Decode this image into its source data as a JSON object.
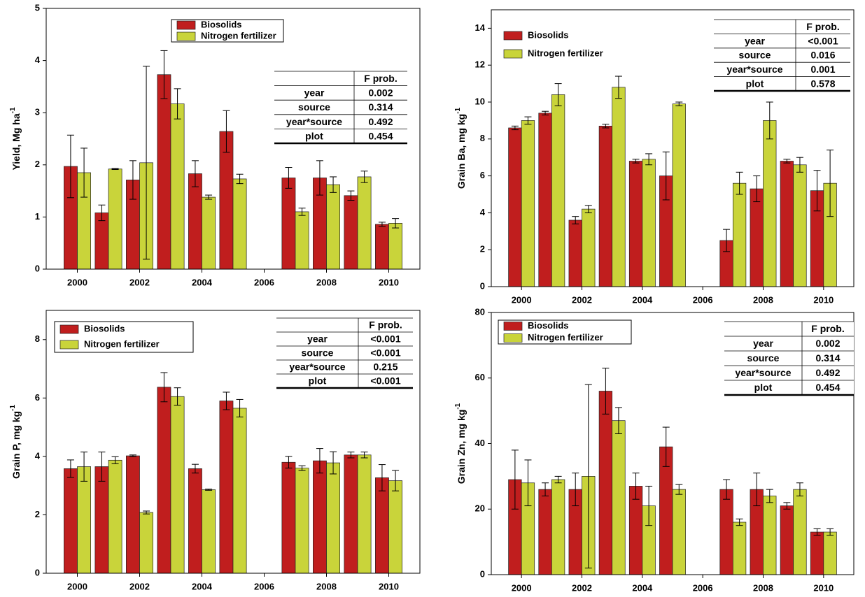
{
  "chart_data": [
    {
      "type": "bar",
      "ylabel": "Yield, Mg ha",
      "ylabel_sup": "-1",
      "categories": [
        "2000",
        null,
        "2002",
        null,
        "2004",
        null,
        "2006",
        null,
        "2008",
        null,
        "2010"
      ],
      "ylim": [
        0,
        5
      ],
      "yticks": [
        0,
        1,
        2,
        3,
        4,
        5
      ],
      "series": [
        {
          "name": "Biosolids",
          "color": "#c01e1e",
          "values": [
            1.97,
            1.08,
            1.71,
            3.73,
            1.83,
            2.64,
            null,
            1.75,
            1.75,
            1.41,
            0.86
          ],
          "errors": [
            0.6,
            0.15,
            0.37,
            0.46,
            0.25,
            0.4,
            null,
            0.2,
            0.33,
            0.09,
            0.04
          ]
        },
        {
          "name": "Nitrogen fertilizer",
          "color": "#c9d43a",
          "values": [
            1.85,
            1.92,
            2.04,
            3.17,
            1.38,
            1.73,
            null,
            1.1,
            1.62,
            1.77,
            0.88
          ],
          "errors": [
            0.47,
            0.01,
            1.85,
            0.29,
            0.04,
            0.09,
            null,
            0.07,
            0.15,
            0.11,
            0.09
          ]
        }
      ],
      "table": {
        "header": "F prob.",
        "rows": [
          [
            "year",
            "0.002"
          ],
          [
            "source",
            "0.314"
          ],
          [
            "year*source",
            "0.492"
          ],
          [
            "plot",
            "0.454"
          ]
        ]
      }
    },
    {
      "type": "bar",
      "ylabel": "Grain Ba, mg kg",
      "ylabel_sup": "-1",
      "categories": [
        "2000",
        null,
        "2002",
        null,
        "2004",
        null,
        "2006",
        null,
        "2008",
        null,
        "2010"
      ],
      "ylim": [
        0,
        15
      ],
      "yticks": [
        0,
        2,
        4,
        6,
        8,
        10,
        12,
        14
      ],
      "series": [
        {
          "name": "Biosolids",
          "color": "#c01e1e",
          "values": [
            8.6,
            9.4,
            3.6,
            8.7,
            6.8,
            6.0,
            null,
            2.5,
            5.3,
            6.8,
            5.2
          ],
          "errors": [
            0.1,
            0.1,
            0.2,
            0.1,
            0.1,
            1.3,
            null,
            0.6,
            0.7,
            0.1,
            1.1
          ]
        },
        {
          "name": "Nitrogen fertilizer",
          "color": "#c9d43a",
          "values": [
            9.0,
            10.4,
            4.2,
            10.8,
            6.9,
            9.9,
            null,
            5.6,
            9.0,
            6.6,
            5.6
          ],
          "errors": [
            0.2,
            0.6,
            0.2,
            0.6,
            0.3,
            0.1,
            null,
            0.6,
            1.0,
            0.4,
            1.8
          ]
        }
      ],
      "table": {
        "header": "F prob.",
        "rows": [
          [
            "year",
            "<0.001"
          ],
          [
            "source",
            "0.016"
          ],
          [
            "year*source",
            "0.001"
          ],
          [
            "plot",
            "0.578"
          ]
        ]
      }
    },
    {
      "type": "bar",
      "ylabel": "Grain P, mg kg",
      "ylabel_sup": "-1",
      "categories": [
        "2000",
        null,
        "2002",
        null,
        "2004",
        null,
        "2006",
        null,
        "2008",
        null,
        "2010"
      ],
      "ylim": [
        0,
        9
      ],
      "yticks": [
        0,
        2,
        4,
        6,
        8
      ],
      "series": [
        {
          "name": "Biosolids",
          "color": "#c01e1e",
          "values": [
            3.58,
            3.65,
            4.02,
            6.37,
            3.58,
            5.9,
            null,
            3.8,
            3.85,
            4.05,
            3.27
          ],
          "errors": [
            0.3,
            0.5,
            0.03,
            0.5,
            0.15,
            0.3,
            null,
            0.2,
            0.42,
            0.1,
            0.45
          ]
        },
        {
          "name": "Nitrogen fertilizer",
          "color": "#c9d43a",
          "values": [
            3.65,
            3.87,
            2.08,
            6.05,
            2.86,
            5.65,
            null,
            3.6,
            3.78,
            4.05,
            3.17
          ],
          "errors": [
            0.5,
            0.12,
            0.05,
            0.3,
            0.02,
            0.3,
            null,
            0.08,
            0.38,
            0.1,
            0.35
          ]
        }
      ],
      "table": {
        "header": "F prob.",
        "rows": [
          [
            "year",
            "<0.001"
          ],
          [
            "source",
            "<0.001"
          ],
          [
            "year*source",
            "0.215"
          ],
          [
            "plot",
            "<0.001"
          ]
        ]
      }
    },
    {
      "type": "bar",
      "ylabel": "Grain Zn, mg kg",
      "ylabel_sup": "-1",
      "categories": [
        "2000",
        null,
        "2002",
        null,
        "2004",
        null,
        "2006",
        null,
        "2008",
        null,
        "2010"
      ],
      "ylim": [
        0,
        80
      ],
      "yticks": [
        0,
        20,
        40,
        60,
        80
      ],
      "series": [
        {
          "name": "Biosolids",
          "color": "#c01e1e",
          "values": [
            29,
            26,
            26,
            56,
            27,
            39,
            null,
            26,
            26,
            21,
            13
          ],
          "errors": [
            9,
            2,
            5,
            7,
            4,
            6,
            null,
            3,
            5,
            1,
            1
          ]
        },
        {
          "name": "Nitrogen fertilizer",
          "color": "#c9d43a",
          "values": [
            28,
            29,
            30,
            47,
            21,
            26,
            null,
            16,
            24,
            26,
            13
          ],
          "errors": [
            7,
            1,
            28,
            4,
            6,
            1.5,
            null,
            1,
            2,
            2,
            1
          ]
        }
      ],
      "table": {
        "header": "F prob.",
        "rows": [
          [
            "year",
            "0.002"
          ],
          [
            "source",
            "0.314"
          ],
          [
            "year*source",
            "0.492"
          ],
          [
            "plot",
            "0.454"
          ]
        ]
      }
    }
  ]
}
